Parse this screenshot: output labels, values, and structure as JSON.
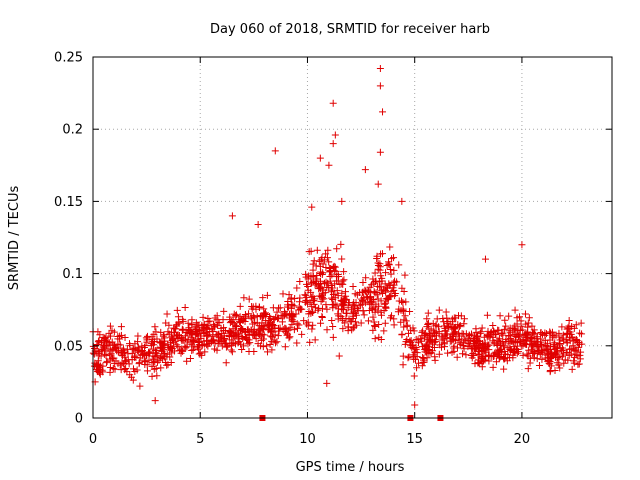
{
  "chart_data": {
    "type": "scatter",
    "title": "Day 060 of 2018, SRMTID for receiver harb",
    "xlabel": "GPS time / hours",
    "ylabel": "SRMTID / TECUs",
    "xlim": [
      0,
      24.2
    ],
    "ylim": [
      0,
      0.25
    ],
    "xticks": [
      0,
      5,
      10,
      15,
      20
    ],
    "xtick_labels": [
      "0",
      "5",
      "10",
      "15",
      "20"
    ],
    "yticks": [
      0,
      0.05,
      0.1,
      0.15,
      0.2,
      0.25
    ],
    "ytick_labels": [
      "0",
      "0.05",
      "0.1",
      "0.15",
      "0.2",
      "0.25"
    ],
    "grid": true,
    "marker": "plus",
    "color": "#e00000",
    "series_name": "SRMTID",
    "time_range_hours": [
      0.0,
      22.8
    ],
    "baseline_markers_hours": [
      7.9,
      14.8,
      16.2
    ],
    "trend": [
      {
        "t": 0,
        "y": 0.045
      },
      {
        "t": 1,
        "y": 0.047
      },
      {
        "t": 2,
        "y": 0.043
      },
      {
        "t": 3,
        "y": 0.046
      },
      {
        "t": 4,
        "y": 0.057
      },
      {
        "t": 5,
        "y": 0.058
      },
      {
        "t": 6,
        "y": 0.058
      },
      {
        "t": 7,
        "y": 0.062
      },
      {
        "t": 8,
        "y": 0.064
      },
      {
        "t": 9,
        "y": 0.065
      },
      {
        "t": 10,
        "y": 0.082
      },
      {
        "t": 11,
        "y": 0.095
      },
      {
        "t": 12,
        "y": 0.072
      },
      {
        "t": 13,
        "y": 0.086
      },
      {
        "t": 14,
        "y": 0.095
      },
      {
        "t": 15,
        "y": 0.045
      },
      {
        "t": 16,
        "y": 0.058
      },
      {
        "t": 17,
        "y": 0.06
      },
      {
        "t": 18,
        "y": 0.05
      },
      {
        "t": 19,
        "y": 0.05
      },
      {
        "t": 20,
        "y": 0.057
      },
      {
        "t": 21,
        "y": 0.048
      },
      {
        "t": 22,
        "y": 0.05
      },
      {
        "t": 22.8,
        "y": 0.05
      }
    ],
    "notable_points": [
      {
        "x": 8.5,
        "y": 0.185
      },
      {
        "x": 11.2,
        "y": 0.218
      },
      {
        "x": 11.3,
        "y": 0.196
      },
      {
        "x": 11.2,
        "y": 0.19
      },
      {
        "x": 11.0,
        "y": 0.175
      },
      {
        "x": 10.6,
        "y": 0.18
      },
      {
        "x": 13.4,
        "y": 0.242
      },
      {
        "x": 13.4,
        "y": 0.23
      },
      {
        "x": 13.5,
        "y": 0.212
      },
      {
        "x": 13.4,
        "y": 0.184
      },
      {
        "x": 12.7,
        "y": 0.172
      },
      {
        "x": 13.3,
        "y": 0.162
      },
      {
        "x": 6.5,
        "y": 0.14
      },
      {
        "x": 7.7,
        "y": 0.134
      },
      {
        "x": 11.6,
        "y": 0.15
      },
      {
        "x": 14.4,
        "y": 0.15
      },
      {
        "x": 10.2,
        "y": 0.146
      },
      {
        "x": 20.0,
        "y": 0.12
      },
      {
        "x": 18.3,
        "y": 0.11
      },
      {
        "x": 15.0,
        "y": 0.009
      },
      {
        "x": 10.9,
        "y": 0.024
      },
      {
        "x": 2.9,
        "y": 0.012
      },
      {
        "x": 0.1,
        "y": 0.025
      }
    ]
  }
}
